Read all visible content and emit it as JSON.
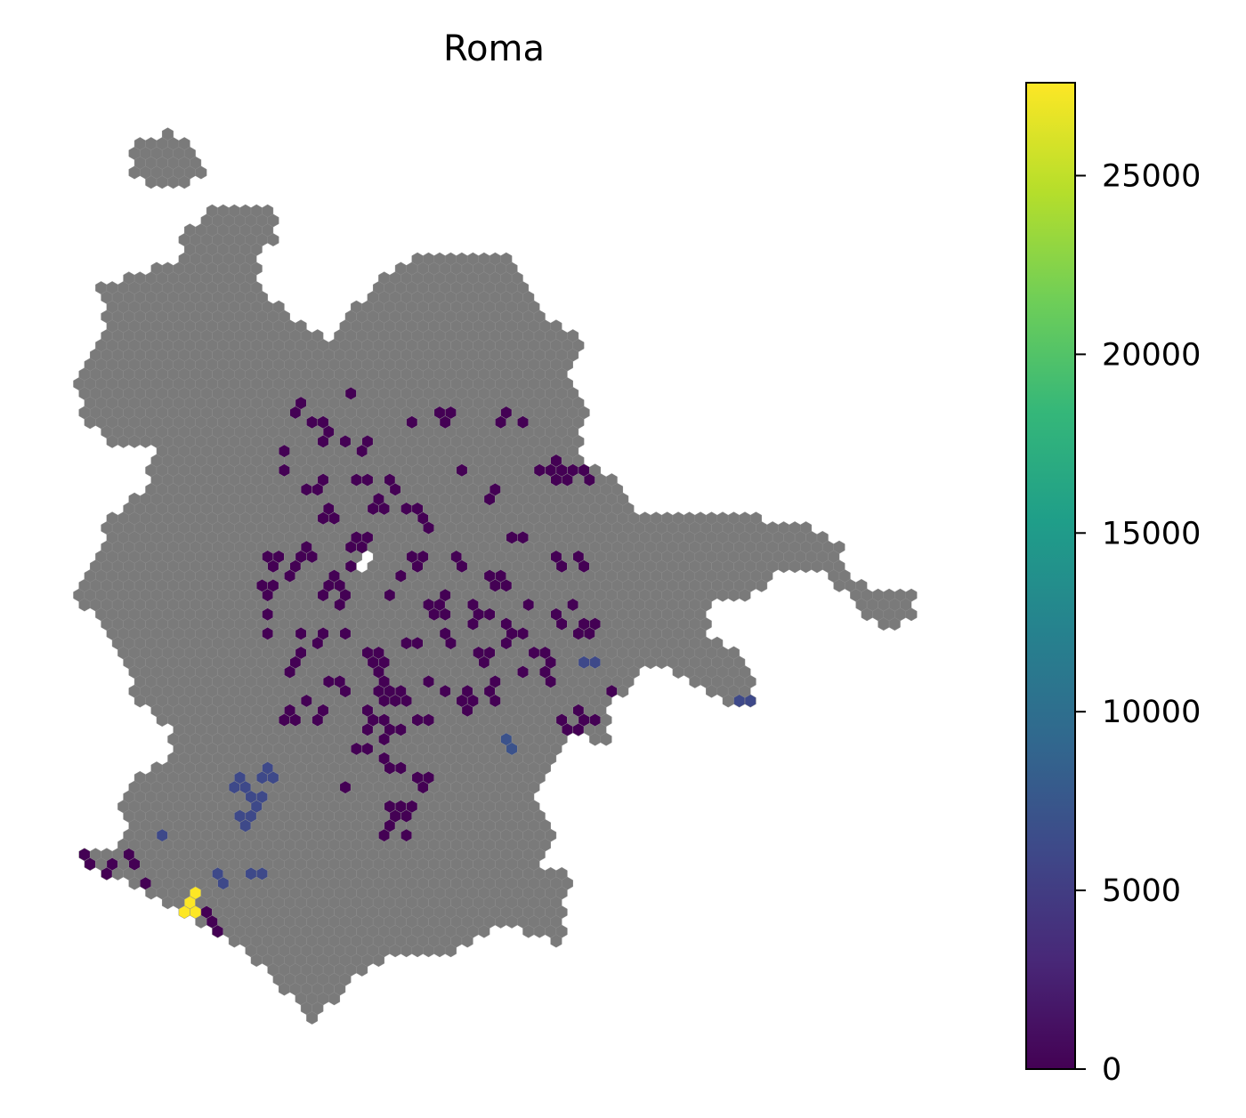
{
  "title": "Roma",
  "colorbar": {
    "min": 0,
    "max": 27600,
    "ticks": [
      {
        "value": 0,
        "label": "0"
      },
      {
        "value": 5000,
        "label": "5000"
      },
      {
        "value": 10000,
        "label": "10000"
      },
      {
        "value": 15000,
        "label": "15000"
      },
      {
        "value": 20000,
        "label": "20000"
      },
      {
        "value": 25000,
        "label": "25000"
      }
    ],
    "colormap": [
      "#440154",
      "#482878",
      "#3e4989",
      "#31688e",
      "#26828e",
      "#1f9e89",
      "#35b779",
      "#6ece58",
      "#b5de2b",
      "#fde725"
    ]
  },
  "colors": {
    "no_data": "#7a7a7a",
    "edge": "#8c8c8c"
  },
  "chart_data": {
    "type": "heatmap",
    "title": "Roma",
    "value_range": [
      0,
      27600
    ],
    "colormap": "viridis",
    "background_region": "gray hexagons (no data)",
    "highlighted_cells": [
      {
        "x": 12.47,
        "y": 41.93,
        "value": 500
      },
      {
        "x": 12.49,
        "y": 41.92,
        "value": 500
      },
      {
        "x": 12.5,
        "y": 41.9,
        "value": 500
      },
      {
        "x": 12.52,
        "y": 41.89,
        "value": 500
      },
      {
        "x": 12.46,
        "y": 41.88,
        "value": 500
      },
      {
        "x": 12.55,
        "y": 41.87,
        "value": 500
      },
      {
        "x": 12.48,
        "y": 41.86,
        "value": 500
      },
      {
        "x": 12.51,
        "y": 41.85,
        "value": 500
      },
      {
        "x": 12.6,
        "y": 41.84,
        "value": 500
      },
      {
        "x": 12.62,
        "y": 41.83,
        "value": 500
      },
      {
        "x": 12.44,
        "y": 41.82,
        "value": 500
      },
      {
        "x": 12.47,
        "y": 41.8,
        "value": 500
      },
      {
        "x": 12.49,
        "y": 41.79,
        "value": 500
      },
      {
        "x": 12.66,
        "y": 41.82,
        "value": 7000
      },
      {
        "x": 12.73,
        "y": 41.8,
        "value": 7000
      },
      {
        "x": 12.58,
        "y": 41.78,
        "value": 7000
      },
      {
        "x": 12.33,
        "y": 41.76,
        "value": 7000
      },
      {
        "x": 12.35,
        "y": 41.75,
        "value": 7000
      },
      {
        "x": 12.34,
        "y": 41.74,
        "value": 7000
      },
      {
        "x": 12.31,
        "y": 41.72,
        "value": 7000
      },
      {
        "x": 12.3,
        "y": 41.71,
        "value": 7000
      },
      {
        "x": 12.27,
        "y": 41.69,
        "value": 27600
      },
      {
        "x": 12.22,
        "y": 41.72,
        "value": 500
      },
      {
        "x": 12.25,
        "y": 41.7,
        "value": 500
      }
    ]
  }
}
